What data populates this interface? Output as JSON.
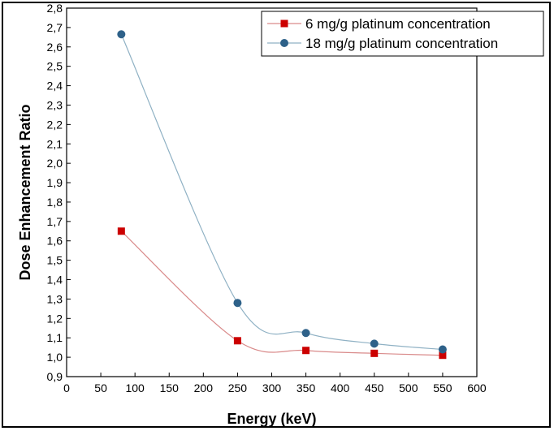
{
  "chart_data": {
    "type": "line",
    "xlabel": "Energy (keV)",
    "ylabel": "Dose Enhancement Ratio",
    "xlim": [
      0,
      600
    ],
    "ylim": [
      0.9,
      2.8
    ],
    "x_ticks": [
      0,
      50,
      100,
      150,
      200,
      250,
      300,
      350,
      400,
      450,
      500,
      550,
      600
    ],
    "y_ticks": [
      "0,9",
      "1,0",
      "1,1",
      "1,2",
      "1,3",
      "1,4",
      "1,5",
      "1,6",
      "1,7",
      "1,8",
      "1,9",
      "2,0",
      "2,1",
      "2,2",
      "2,3",
      "2,4",
      "2,5",
      "2,6",
      "2,7",
      "2,8"
    ],
    "legend_position": "top-right",
    "grid": false,
    "series": [
      {
        "name": "6 mg/g platinum concentration",
        "color": "#cc0000",
        "line_color": "#d98a8a",
        "marker": "square",
        "x": [
          80,
          250,
          350,
          450,
          550
        ],
        "y": [
          1.65,
          1.085,
          1.035,
          1.02,
          1.01
        ]
      },
      {
        "name": "18 mg/g platinum concentration",
        "color": "#2e6189",
        "line_color": "#8fb1c4",
        "marker": "circle",
        "x": [
          80,
          250,
          350,
          450,
          550
        ],
        "y": [
          2.665,
          1.28,
          1.125,
          1.07,
          1.04
        ]
      }
    ]
  }
}
